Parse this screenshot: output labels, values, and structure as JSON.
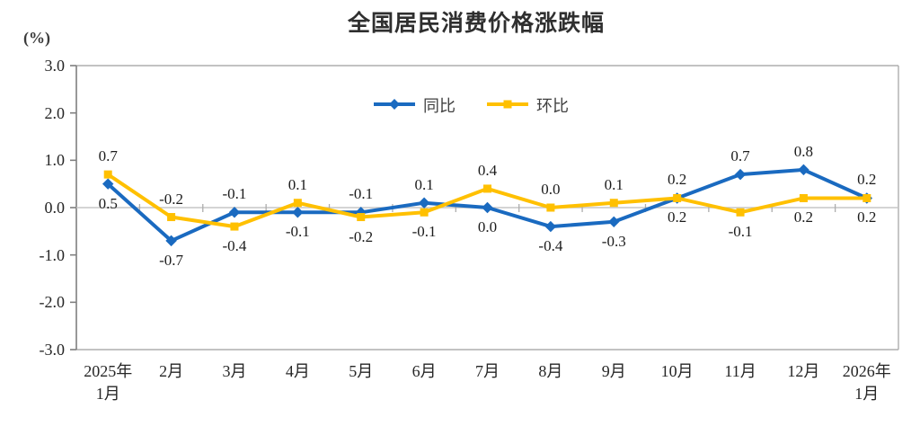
{
  "chart_data": {
    "type": "line",
    "title": "全国居民消费价格涨跌幅",
    "ylabel": "(%)",
    "xlabel": "",
    "ylim": [
      -3.0,
      3.0
    ],
    "ytick_step": 1.0,
    "yticks": [
      "3.0",
      "2.0",
      "1.0",
      "0.0",
      "-1.0",
      "-2.0",
      "-3.0"
    ],
    "grid": "zero-baseline-only",
    "legend_position": "top-center",
    "categories": [
      "2025年1月",
      "2月",
      "3月",
      "4月",
      "5月",
      "6月",
      "7月",
      "8月",
      "9月",
      "10月",
      "11月",
      "12月",
      "2026年1月"
    ],
    "category_display": [
      [
        "2025年",
        "1月"
      ],
      [
        "2月"
      ],
      [
        "3月"
      ],
      [
        "4月"
      ],
      [
        "5月"
      ],
      [
        "6月"
      ],
      [
        "7月"
      ],
      [
        "8月"
      ],
      [
        "9月"
      ],
      [
        "10月"
      ],
      [
        "11月"
      ],
      [
        "12月"
      ],
      [
        "2026年",
        "1月"
      ]
    ],
    "series": [
      {
        "name": "同比",
        "color": "#1A6AC0",
        "marker": "diamond",
        "values": [
          0.5,
          -0.7,
          -0.1,
          -0.1,
          -0.1,
          0.1,
          0.0,
          -0.4,
          -0.3,
          0.2,
          0.7,
          0.8,
          0.2
        ]
      },
      {
        "name": "环比",
        "color": "#FFC000",
        "marker": "square",
        "values": [
          0.7,
          -0.2,
          -0.4,
          0.1,
          -0.2,
          -0.1,
          0.4,
          0.0,
          0.1,
          0.2,
          -0.1,
          0.2,
          0.2
        ]
      }
    ]
  },
  "colors": {
    "axis_line": "#7F7F7F",
    "border_line": "#ADADAD",
    "zero_line": "#C6C6C6",
    "tick_text": "#262626",
    "label_text": "#1C1C1C",
    "title_text": "#2F2F2F"
  }
}
